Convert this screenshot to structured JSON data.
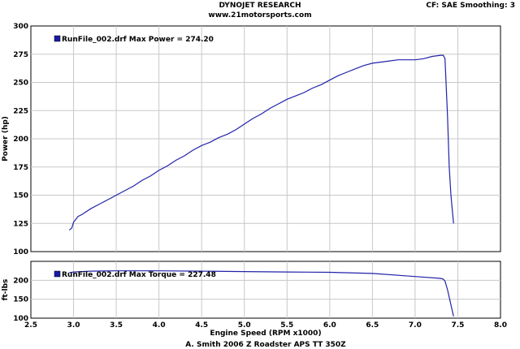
{
  "chart_data": [
    {
      "type": "line",
      "title": "DYNOJET RESEARCH",
      "subtitle": "www.21motorsports.com",
      "info": "CF: SAE  Smoothing: 3",
      "ylabel": "Power (hp)",
      "ylim": [
        100,
        300
      ],
      "yticks": [
        "100",
        "125",
        "150",
        "175",
        "200",
        "225",
        "250",
        "275",
        "300"
      ],
      "grid": true,
      "legend": "RunFile_002.drf Max Power = 274.20",
      "legend_color": "#1a1aa6",
      "line_color": "#2222aa",
      "x": [
        2.95,
        2.98,
        3.0,
        3.05,
        3.1,
        3.2,
        3.3,
        3.4,
        3.5,
        3.6,
        3.7,
        3.8,
        3.9,
        4.0,
        4.1,
        4.2,
        4.3,
        4.4,
        4.5,
        4.6,
        4.7,
        4.8,
        4.9,
        5.0,
        5.1,
        5.2,
        5.3,
        5.4,
        5.5,
        5.6,
        5.7,
        5.8,
        5.9,
        6.0,
        6.1,
        6.2,
        6.3,
        6.4,
        6.5,
        6.6,
        6.7,
        6.8,
        6.9,
        7.0,
        7.1,
        7.2,
        7.3,
        7.33,
        7.35,
        7.38,
        7.4,
        7.42,
        7.45
      ],
      "y": [
        119,
        121,
        126,
        131,
        133,
        138,
        142,
        146,
        150,
        154,
        158,
        163,
        167,
        172,
        176,
        181,
        185,
        190,
        194,
        197,
        201,
        204,
        208,
        213,
        218,
        222,
        227,
        231,
        235,
        238,
        241,
        245,
        248,
        252,
        256,
        259,
        262,
        265,
        267,
        268,
        269,
        270,
        270,
        270,
        271,
        273,
        274,
        274,
        271,
        220,
        175,
        150,
        125
      ]
    },
    {
      "type": "line",
      "ylabel": "ft-lbs",
      "xlabel": "Engine Speed (RPM x1000)",
      "xlim": [
        2.5,
        8.0
      ],
      "xticks": [
        "2.5",
        "3.0",
        "3.5",
        "4.0",
        "4.5",
        "5.0",
        "5.5",
        "6.0",
        "6.5",
        "7.0",
        "7.5",
        "8.0"
      ],
      "ylim": [
        100,
        250
      ],
      "yticks": [
        "100",
        "150",
        "200"
      ],
      "grid": true,
      "legend": "RunFile_002.drf Max Torque = 227.48",
      "legend_color": "#1a1aa6",
      "line_color": "#2222aa",
      "x": [
        2.95,
        3.0,
        3.2,
        3.5,
        4.0,
        4.5,
        5.0,
        5.5,
        6.0,
        6.5,
        7.0,
        7.3,
        7.33,
        7.35,
        7.38,
        7.45
      ],
      "y": [
        220,
        222,
        224,
        225,
        225,
        224,
        223,
        222,
        221,
        218,
        210,
        205,
        203,
        198,
        175,
        105
      ]
    }
  ],
  "footer": "A. Smith 2006 Z Roadster APS TT 350Z"
}
